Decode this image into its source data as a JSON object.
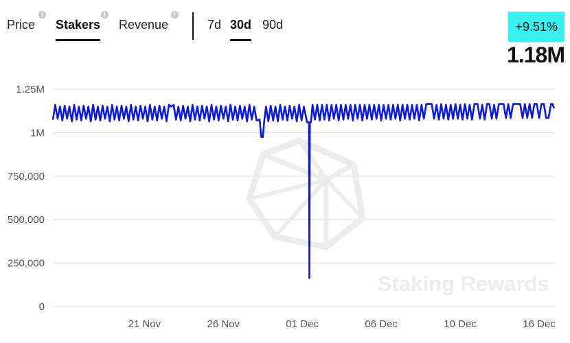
{
  "tabs": {
    "metric": [
      {
        "label": "Price",
        "active": false
      },
      {
        "label": "Stakers",
        "active": true
      },
      {
        "label": "Revenue",
        "active": false
      }
    ],
    "range": [
      {
        "label": "7d",
        "active": false
      },
      {
        "label": "30d",
        "active": true
      },
      {
        "label": "90d",
        "active": false
      }
    ],
    "info_icon": "info-icon"
  },
  "summary": {
    "change": "+9.51%",
    "change_color": "#38f0f0",
    "value": "1.18M"
  },
  "watermark": {
    "text": "Staking Rewards",
    "icon": "polyhedron-logo-icon"
  },
  "chart_data": {
    "type": "line",
    "title": "",
    "xlabel": "",
    "ylabel": "",
    "line_color": "#0a18e8",
    "grid": true,
    "ylim": [
      0,
      1250000
    ],
    "y_ticks": [
      {
        "value": 0,
        "label": "0"
      },
      {
        "value": 250000,
        "label": "250,000"
      },
      {
        "value": 500000,
        "label": "500,000"
      },
      {
        "value": 750000,
        "label": "750,000"
      },
      {
        "value": 1000000,
        "label": "1M"
      },
      {
        "value": 1250000,
        "label": "1.25M"
      }
    ],
    "x_ticks": [
      {
        "day": 5.0,
        "label": "21 Nov"
      },
      {
        "day": 10.0,
        "label": "26 Nov"
      },
      {
        "day": 15.0,
        "label": "01 Dec"
      },
      {
        "day": 20.0,
        "label": "06 Dec"
      },
      {
        "day": 25.0,
        "label": "10 Dec"
      },
      {
        "day": 30.0,
        "label": "16 Dec"
      }
    ],
    "xlim": [
      -0.8,
      31.0
    ],
    "series": [
      {
        "points": [
          [
            -0.8,
            1075000
          ],
          [
            -0.65,
            1160000
          ],
          [
            -0.5,
            1080000
          ],
          [
            -0.35,
            1150000
          ],
          [
            -0.2,
            1070000
          ],
          [
            -0.05,
            1155000
          ],
          [
            0.1,
            1080000
          ],
          [
            0.25,
            1150000
          ],
          [
            0.4,
            1065000
          ],
          [
            0.55,
            1160000
          ],
          [
            0.7,
            1075000
          ],
          [
            0.85,
            1150000
          ],
          [
            1.0,
            1070000
          ],
          [
            1.15,
            1155000
          ],
          [
            1.3,
            1080000
          ],
          [
            1.45,
            1150000
          ],
          [
            1.6,
            1065000
          ],
          [
            1.75,
            1160000
          ],
          [
            1.9,
            1075000
          ],
          [
            2.05,
            1150000
          ],
          [
            2.2,
            1070000
          ],
          [
            2.35,
            1155000
          ],
          [
            2.5,
            1080000
          ],
          [
            2.65,
            1150000
          ],
          [
            2.8,
            1065000
          ],
          [
            2.95,
            1160000
          ],
          [
            3.1,
            1075000
          ],
          [
            3.25,
            1150000
          ],
          [
            3.4,
            1070000
          ],
          [
            3.55,
            1155000
          ],
          [
            3.7,
            1080000
          ],
          [
            3.85,
            1150000
          ],
          [
            4.0,
            1065000
          ],
          [
            4.15,
            1160000
          ],
          [
            4.3,
            1075000
          ],
          [
            4.45,
            1150000
          ],
          [
            4.6,
            1070000
          ],
          [
            4.75,
            1155000
          ],
          [
            4.9,
            1080000
          ],
          [
            5.05,
            1150000
          ],
          [
            5.2,
            1065000
          ],
          [
            5.35,
            1160000
          ],
          [
            5.5,
            1075000
          ],
          [
            5.65,
            1150000
          ],
          [
            5.8,
            1070000
          ],
          [
            5.95,
            1155000
          ],
          [
            6.1,
            1080000
          ],
          [
            6.25,
            1150000
          ],
          [
            6.4,
            1065000
          ],
          [
            6.55,
            1160000
          ],
          [
            6.7,
            1150000
          ],
          [
            6.85,
            1160000
          ],
          [
            7.0,
            1075000
          ],
          [
            7.15,
            1150000
          ],
          [
            7.3,
            1070000
          ],
          [
            7.45,
            1155000
          ],
          [
            7.6,
            1080000
          ],
          [
            7.75,
            1150000
          ],
          [
            7.9,
            1065000
          ],
          [
            8.05,
            1160000
          ],
          [
            8.2,
            1075000
          ],
          [
            8.35,
            1150000
          ],
          [
            8.5,
            1070000
          ],
          [
            8.65,
            1155000
          ],
          [
            8.8,
            1080000
          ],
          [
            8.95,
            1150000
          ],
          [
            9.1,
            1065000
          ],
          [
            9.25,
            1160000
          ],
          [
            9.4,
            1075000
          ],
          [
            9.55,
            1150000
          ],
          [
            9.7,
            1070000
          ],
          [
            9.85,
            1155000
          ],
          [
            10.0,
            1080000
          ],
          [
            10.15,
            1150000
          ],
          [
            10.3,
            1065000
          ],
          [
            10.45,
            1160000
          ],
          [
            10.6,
            1075000
          ],
          [
            10.75,
            1150000
          ],
          [
            10.9,
            1070000
          ],
          [
            11.05,
            1155000
          ],
          [
            11.2,
            1080000
          ],
          [
            11.35,
            1150000
          ],
          [
            11.5,
            1065000
          ],
          [
            11.65,
            1160000
          ],
          [
            11.8,
            1075000
          ],
          [
            11.95,
            1150000
          ],
          [
            12.1,
            1070000
          ],
          [
            12.3,
            1075000
          ],
          [
            12.4,
            975000
          ],
          [
            12.5,
            975000
          ],
          [
            12.6,
            1075000
          ],
          [
            12.7,
            1150000
          ],
          [
            12.85,
            1065000
          ],
          [
            13.0,
            1155000
          ],
          [
            13.15,
            1070000
          ],
          [
            13.3,
            1150000
          ],
          [
            13.45,
            1065000
          ],
          [
            13.6,
            1160000
          ],
          [
            13.75,
            1075000
          ],
          [
            13.9,
            1150000
          ],
          [
            14.05,
            1070000
          ],
          [
            14.2,
            1155000
          ],
          [
            14.35,
            1080000
          ],
          [
            14.5,
            1150000
          ],
          [
            14.65,
            1065000
          ],
          [
            14.8,
            1160000
          ],
          [
            14.95,
            1070000
          ],
          [
            15.1,
            1150000
          ],
          [
            15.3,
            1060000
          ],
          [
            15.42,
            1060000
          ],
          [
            15.45,
            165000
          ],
          [
            15.48,
            1060000
          ],
          [
            15.55,
            1060000
          ],
          [
            15.65,
            1160000
          ],
          [
            15.8,
            1075000
          ],
          [
            15.95,
            1160000
          ],
          [
            16.1,
            1070000
          ],
          [
            16.25,
            1160000
          ],
          [
            16.4,
            1075000
          ],
          [
            16.55,
            1160000
          ],
          [
            16.7,
            1070000
          ],
          [
            16.85,
            1160000
          ],
          [
            17.0,
            1080000
          ],
          [
            17.15,
            1160000
          ],
          [
            17.3,
            1070000
          ],
          [
            17.45,
            1160000
          ],
          [
            17.6,
            1075000
          ],
          [
            17.75,
            1160000
          ],
          [
            17.9,
            1080000
          ],
          [
            18.05,
            1160000
          ],
          [
            18.2,
            1070000
          ],
          [
            18.35,
            1160000
          ],
          [
            18.5,
            1080000
          ],
          [
            18.65,
            1160000
          ],
          [
            18.8,
            1070000
          ],
          [
            18.95,
            1160000
          ],
          [
            19.1,
            1080000
          ],
          [
            19.25,
            1160000
          ],
          [
            19.4,
            1075000
          ],
          [
            19.55,
            1160000
          ],
          [
            19.7,
            1080000
          ],
          [
            19.85,
            1160000
          ],
          [
            20.0,
            1070000
          ],
          [
            20.15,
            1160000
          ],
          [
            20.3,
            1080000
          ],
          [
            20.45,
            1160000
          ],
          [
            20.6,
            1075000
          ],
          [
            20.75,
            1160000
          ],
          [
            20.9,
            1080000
          ],
          [
            21.05,
            1160000
          ],
          [
            21.2,
            1070000
          ],
          [
            21.35,
            1160000
          ],
          [
            21.5,
            1080000
          ],
          [
            21.65,
            1160000
          ],
          [
            21.8,
            1075000
          ],
          [
            21.95,
            1160000
          ],
          [
            22.1,
            1080000
          ],
          [
            22.25,
            1160000
          ],
          [
            22.4,
            1070000
          ],
          [
            22.55,
            1160000
          ],
          [
            22.7,
            1080000
          ],
          [
            22.85,
            1165000
          ],
          [
            23.2,
            1165000
          ],
          [
            23.35,
            1080000
          ],
          [
            23.5,
            1160000
          ],
          [
            23.65,
            1075000
          ],
          [
            23.8,
            1165000
          ],
          [
            23.95,
            1080000
          ],
          [
            24.1,
            1160000
          ],
          [
            24.25,
            1075000
          ],
          [
            24.4,
            1160000
          ],
          [
            24.55,
            1080000
          ],
          [
            24.7,
            1165000
          ],
          [
            24.85,
            1080000
          ],
          [
            25.0,
            1160000
          ],
          [
            25.15,
            1075000
          ],
          [
            25.3,
            1165000
          ],
          [
            25.45,
            1080000
          ],
          [
            25.6,
            1160000
          ],
          [
            25.75,
            1075000
          ],
          [
            25.9,
            1165000
          ],
          [
            26.1,
            1165000
          ],
          [
            26.25,
            1080000
          ],
          [
            26.4,
            1160000
          ],
          [
            26.55,
            1075000
          ],
          [
            26.7,
            1165000
          ],
          [
            26.85,
            1165000
          ],
          [
            27.0,
            1080000
          ],
          [
            27.15,
            1160000
          ],
          [
            27.3,
            1080000
          ],
          [
            27.45,
            1165000
          ],
          [
            27.75,
            1165000
          ],
          [
            27.9,
            1085000
          ],
          [
            28.05,
            1165000
          ],
          [
            28.2,
            1085000
          ],
          [
            28.35,
            1165000
          ],
          [
            28.65,
            1165000
          ],
          [
            28.8,
            1165000
          ],
          [
            28.95,
            1085000
          ],
          [
            29.1,
            1165000
          ],
          [
            29.25,
            1085000
          ],
          [
            29.4,
            1165000
          ],
          [
            29.55,
            1085000
          ],
          [
            29.7,
            1165000
          ],
          [
            29.85,
            1165000
          ],
          [
            30.0,
            1085000
          ],
          [
            30.15,
            1165000
          ],
          [
            30.3,
            1165000
          ],
          [
            30.45,
            1085000
          ],
          [
            30.6,
            1085000
          ],
          [
            30.75,
            1165000
          ],
          [
            30.85,
            1165000
          ],
          [
            30.95,
            1140000
          ]
        ]
      }
    ]
  }
}
